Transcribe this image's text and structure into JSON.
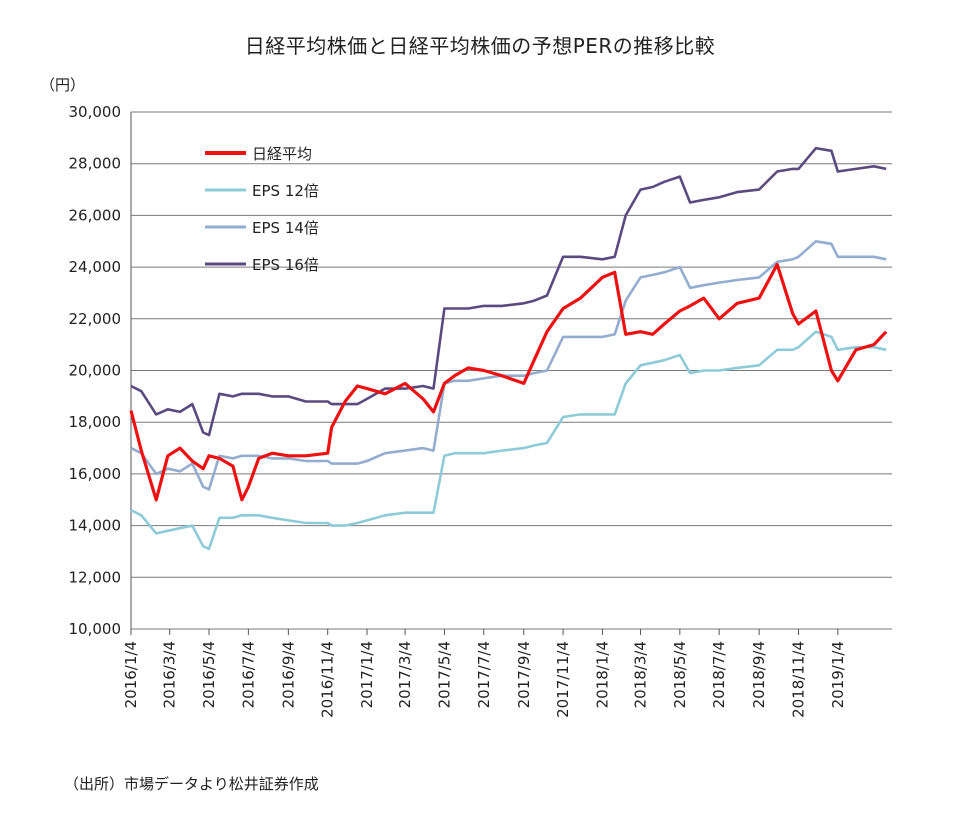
{
  "title": "日経平均株価と日経平均株価の予想PERの推移比較",
  "unit": "（円）",
  "source": "（出所）市場データより松井証券作成",
  "colors": {
    "nikkei": "#ee1111",
    "eps12": "#8ecbd9",
    "eps14": "#93add0",
    "eps16": "#5a4a80",
    "grid": "#7a7a7a"
  },
  "chart_data": {
    "type": "line",
    "title": "日経平均株価と日経平均株価の予想PERの推移比較",
    "xlabel": "",
    "ylabel": "（円）",
    "ylim": [
      10000,
      30000
    ],
    "grid": "horizontal",
    "legend": "top-left",
    "y_ticks": [
      "10,000",
      "12,000",
      "14,000",
      "16,000",
      "18,000",
      "20,000",
      "22,000",
      "24,000",
      "26,000",
      "28,000",
      "30,000"
    ],
    "y_tick_values": [
      10000,
      12000,
      14000,
      16000,
      18000,
      20000,
      22000,
      24000,
      26000,
      28000,
      30000
    ],
    "x_ticks": [
      "2016/1/4",
      "2016/3/4",
      "2016/5/4",
      "2016/7/4",
      "2016/9/4",
      "2016/11/4",
      "2017/1/4",
      "2017/3/4",
      "2017/5/4",
      "2017/7/4",
      "2017/9/4",
      "2017/11/4",
      "2018/1/4",
      "2018/3/4",
      "2018/5/4",
      "2018/7/4",
      "2018/9/4",
      "2018/11/4",
      "2019/1/4"
    ],
    "x": [
      "2016/1/4",
      "2016/1/20",
      "2016/2/12",
      "2016/3/1",
      "2016/3/20",
      "2016/4/8",
      "2016/4/25",
      "2016/5/4",
      "2016/5/20",
      "2016/6/10",
      "2016/6/24",
      "2016/7/4",
      "2016/7/20",
      "2016/8/10",
      "2016/9/4",
      "2016/10/1",
      "2016/11/4",
      "2016/11/10",
      "2016/12/1",
      "2016/12/20",
      "2017/1/4",
      "2017/2/1",
      "2017/3/4",
      "2017/4/1",
      "2017/4/17",
      "2017/5/4",
      "2017/5/20",
      "2017/6/10",
      "2017/7/4",
      "2017/8/1",
      "2017/9/4",
      "2017/9/20",
      "2017/10/10",
      "2017/11/4",
      "2017/12/1",
      "2018/1/4",
      "2018/1/23",
      "2018/2/9",
      "2018/3/4",
      "2018/3/23",
      "2018/4/10",
      "2018/5/4",
      "2018/5/20",
      "2018/6/10",
      "2018/7/4",
      "2018/8/1",
      "2018/9/4",
      "2018/10/2",
      "2018/10/26",
      "2018/11/4",
      "2018/12/1",
      "2018/12/25",
      "2019/1/4",
      "2019/2/1",
      "2019/3/1",
      "2019/3/20"
    ],
    "series": [
      {
        "name": "日経平均",
        "color": "#ee1111",
        "values": [
          18450,
          16900,
          15000,
          16700,
          17000,
          16500,
          16200,
          16700,
          16600,
          16300,
          15000,
          15500,
          16600,
          16800,
          16700,
          16700,
          16800,
          17800,
          18800,
          19400,
          19300,
          19100,
          19500,
          18900,
          18400,
          19500,
          19800,
          20100,
          20000,
          19800,
          19500,
          20400,
          21500,
          22400,
          22800,
          23600,
          23800,
          21400,
          21500,
          21400,
          21800,
          22300,
          22500,
          22800,
          22000,
          22600,
          22800,
          24100,
          22200,
          21800,
          22300,
          20000,
          19600,
          20800,
          21000,
          21500
        ]
      },
      {
        "name": "EPS 12倍",
        "color": "#8ecbd9",
        "values": [
          14600,
          14400,
          13700,
          13800,
          13900,
          14000,
          13200,
          13100,
          14300,
          14300,
          14400,
          14400,
          14400,
          14300,
          14200,
          14100,
          14100,
          14000,
          14000,
          14100,
          14200,
          14400,
          14500,
          14500,
          14500,
          16700,
          16800,
          16800,
          16800,
          16900,
          17000,
          17100,
          17200,
          18200,
          18300,
          18300,
          18300,
          19500,
          20200,
          20300,
          20400,
          20600,
          19900,
          20000,
          20000,
          20100,
          20200,
          20800,
          20800,
          20900,
          21500,
          21300,
          20800,
          20900,
          20900,
          20800
        ]
      },
      {
        "name": "EPS 14倍",
        "color": "#93add0",
        "values": [
          17000,
          16800,
          16000,
          16200,
          16100,
          16400,
          15500,
          15400,
          16700,
          16600,
          16700,
          16700,
          16700,
          16600,
          16600,
          16500,
          16500,
          16400,
          16400,
          16400,
          16500,
          16800,
          16900,
          17000,
          16900,
          19500,
          19600,
          19600,
          19700,
          19800,
          19800,
          19900,
          20000,
          21300,
          21300,
          21300,
          21400,
          22700,
          23600,
          23700,
          23800,
          24000,
          23200,
          23300,
          23400,
          23500,
          23600,
          24200,
          24300,
          24400,
          25000,
          24900,
          24400,
          24400,
          24400,
          24300
        ]
      },
      {
        "name": "EPS 16倍",
        "color": "#5a4a80",
        "values": [
          19400,
          19200,
          18300,
          18500,
          18400,
          18700,
          17600,
          17500,
          19100,
          19000,
          19100,
          19100,
          19100,
          19000,
          19000,
          18800,
          18800,
          18700,
          18700,
          18700,
          18900,
          19300,
          19300,
          19400,
          19300,
          22400,
          22400,
          22400,
          22500,
          22500,
          22600,
          22700,
          22900,
          24400,
          24400,
          24300,
          24400,
          26000,
          27000,
          27100,
          27300,
          27500,
          26500,
          26600,
          26700,
          26900,
          27000,
          27700,
          27800,
          27800,
          28600,
          28500,
          27700,
          27800,
          27900,
          27800
        ]
      }
    ]
  }
}
